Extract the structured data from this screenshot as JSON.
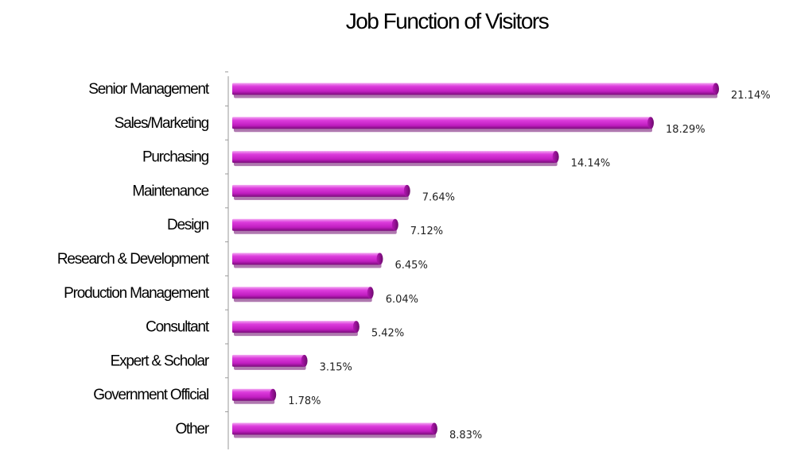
{
  "chart_data": {
    "type": "bar",
    "orientation": "horizontal",
    "title": "Job Function of Visitors",
    "categories": [
      "Senior Management",
      "Sales/Marketing",
      "Purchasing",
      "Maintenance",
      "Design",
      "Research & Development",
      "Production Management",
      "Consultant",
      "Expert & Scholar",
      "Government Official",
      "Other"
    ],
    "values": [
      21.14,
      18.29,
      14.14,
      7.64,
      7.12,
      6.45,
      6.04,
      5.42,
      3.15,
      1.78,
      8.83
    ],
    "value_labels": [
      "21.14%",
      "18.29%",
      "14.14%",
      "7.64%",
      "7.12%",
      "6.45%",
      "6.04%",
      "5.42%",
      "3.15%",
      "1.78%",
      "8.83%"
    ],
    "xlabel": "",
    "ylabel": "",
    "xlim": [
      0,
      21.14
    ],
    "grid": false,
    "legend": "none",
    "bar_color": "#cc22cc",
    "bar_highlight_color": "#f2a6f2",
    "bar_shadow_color": "#6e0a6e"
  }
}
